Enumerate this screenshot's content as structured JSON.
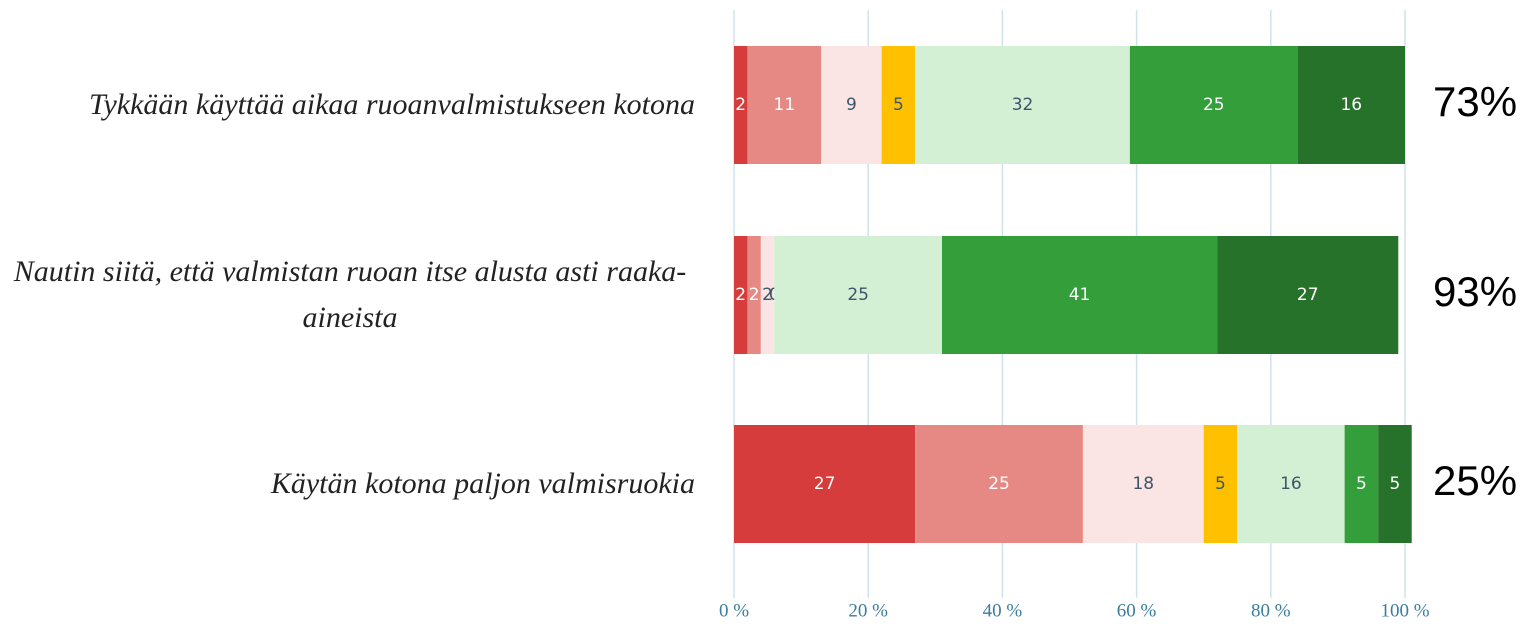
{
  "chart_data": {
    "type": "stacked_barh",
    "categories": [
      "Tykkään käyttää aikaa ruoanvalmistukseen kotona",
      "Nautin siitä, että valmistan ruoan itse alusta asti raaka-aineista",
      "Käytän kotona paljon valmisruokia"
    ],
    "series": [
      {
        "color": "#d63c3c",
        "label_color": "#ffffff",
        "values": [
          2,
          2,
          27
        ]
      },
      {
        "color": "#e68985",
        "label_color": "#ffffff",
        "values": [
          11,
          2,
          25
        ]
      },
      {
        "color": "#fbe4e4",
        "label_color": "#3d5566",
        "values": [
          9,
          2,
          18
        ]
      },
      {
        "color": "#ffc000",
        "label_color": "#3d5566",
        "values": [
          5,
          0,
          5
        ]
      },
      {
        "color": "#d3f0d5",
        "label_color": "#3d5566",
        "values": [
          32,
          25,
          16
        ]
      },
      {
        "color": "#339e3a",
        "label_color": "#ffffff",
        "values": [
          25,
          41,
          5
        ]
      },
      {
        "color": "#26722b",
        "label_color": "#ffffff",
        "values": [
          16,
          27,
          5
        ]
      }
    ],
    "annotations": [
      "73%",
      "93%",
      "25%"
    ],
    "xlim": [
      0,
      100
    ],
    "xticks": [
      {
        "value": 0,
        "label": "0 %"
      },
      {
        "value": 20,
        "label": "20 %"
      },
      {
        "value": 40,
        "label": "40 %"
      },
      {
        "value": 60,
        "label": "60 %"
      },
      {
        "value": 80,
        "label": "80 %"
      },
      {
        "value": 100,
        "label": "100 %"
      }
    ],
    "grid": true
  }
}
